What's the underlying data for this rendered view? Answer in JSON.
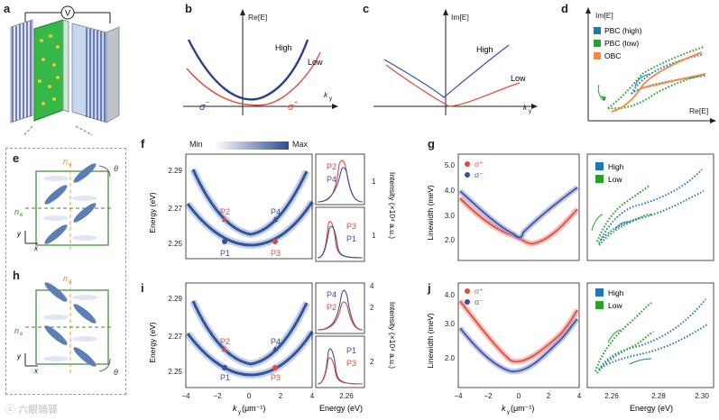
{
  "panel_labels": {
    "a": "a",
    "b": "b",
    "c": "c",
    "d": "d",
    "e": "e",
    "f": "f",
    "g": "g",
    "h": "h",
    "i": "i",
    "j": "j"
  },
  "a": {
    "meter": "V"
  },
  "b": {
    "ylabel": "Re[E]",
    "xlabel": "k",
    "xsub": "y",
    "high": "High",
    "low": "Low",
    "sm": "σ",
    "sm_sup": "−",
    "sp": "σ",
    "sp_sup": "+"
  },
  "c": {
    "ylabel": "Im[E]",
    "xlabel": "k",
    "xsub": "y",
    "high": "High",
    "low": "Low"
  },
  "d": {
    "ylabel": "Im[E]",
    "xlabel": "Re[E]",
    "legend": [
      "PBC (high)",
      "PBC (low)",
      "OBC"
    ],
    "colors": [
      "#1f77b4",
      "#2ca02c",
      "#f58a3a"
    ]
  },
  "e": {
    "no": "n",
    "no_sub": "o",
    "ne": "n",
    "ne_sub": "e",
    "theta": "θ",
    "x": "x",
    "y": "y"
  },
  "h": {
    "no": "n",
    "no_sub": "o",
    "ne": "n",
    "ne_sub": "e",
    "theta": "θ",
    "x": "x",
    "y": "y"
  },
  "f": {
    "colorbar_min": "Min",
    "colorbar_max": "Max",
    "ylabel": "Energy (eV)",
    "yticks": [
      "2.29",
      "2.27",
      "2.25"
    ],
    "points": [
      "P2",
      "P4",
      "P1",
      "P3"
    ],
    "side_top": [
      "P2",
      "P4"
    ],
    "side_bot": [
      "P3",
      "P1"
    ],
    "side_yticks_top": [
      "1"
    ],
    "side_yticks_bot": [
      "1"
    ],
    "side_ylabel": "Intensity (×10⁴ a.u.)"
  },
  "i": {
    "ylabel": "Energy (eV)",
    "yticks": [
      "2.29",
      "2.27",
      "2.25"
    ],
    "xticks": [
      "−4",
      "−2",
      "0",
      "2",
      "4"
    ],
    "xlabel": "k",
    "xsub": "y",
    "xunit": " (μm⁻¹)",
    "side_top": [
      "P4",
      "P2"
    ],
    "side_bot": [
      "P1",
      "P3"
    ],
    "side_xtick": "2.26",
    "side_xlabel": "Energy (eV)",
    "side_yticks_top": [
      "4",
      "2"
    ],
    "side_yticks_bot": [
      "2"
    ],
    "side_ylabel": "Intensity (×10⁴ a.u.)"
  },
  "g": {
    "ylabel": "Linewidth (meV)",
    "yticks": [
      "5.0",
      "4.0",
      "3.0",
      "2.0"
    ],
    "legend": [
      "σ⁺",
      "σ⁻"
    ],
    "legend2": [
      "High",
      "Low"
    ]
  },
  "j": {
    "ylabel": "Linewidth (meV)",
    "yticks": [
      "4.0",
      "3.0",
      "2.0"
    ],
    "xticks": [
      "−4",
      "−2",
      "0",
      "2",
      "4"
    ],
    "xlabel": "k",
    "xsub": "y",
    "xunit": " (μm⁻¹)",
    "legend": [
      "σ⁺",
      "σ⁻"
    ],
    "legend2": [
      "High",
      "Low"
    ],
    "xticks2": [
      "2.26",
      "2.28",
      "2.30"
    ],
    "xlabel2": "Energy (eV)"
  },
  "watermark": "ⓒ 六眼骑驿"
}
